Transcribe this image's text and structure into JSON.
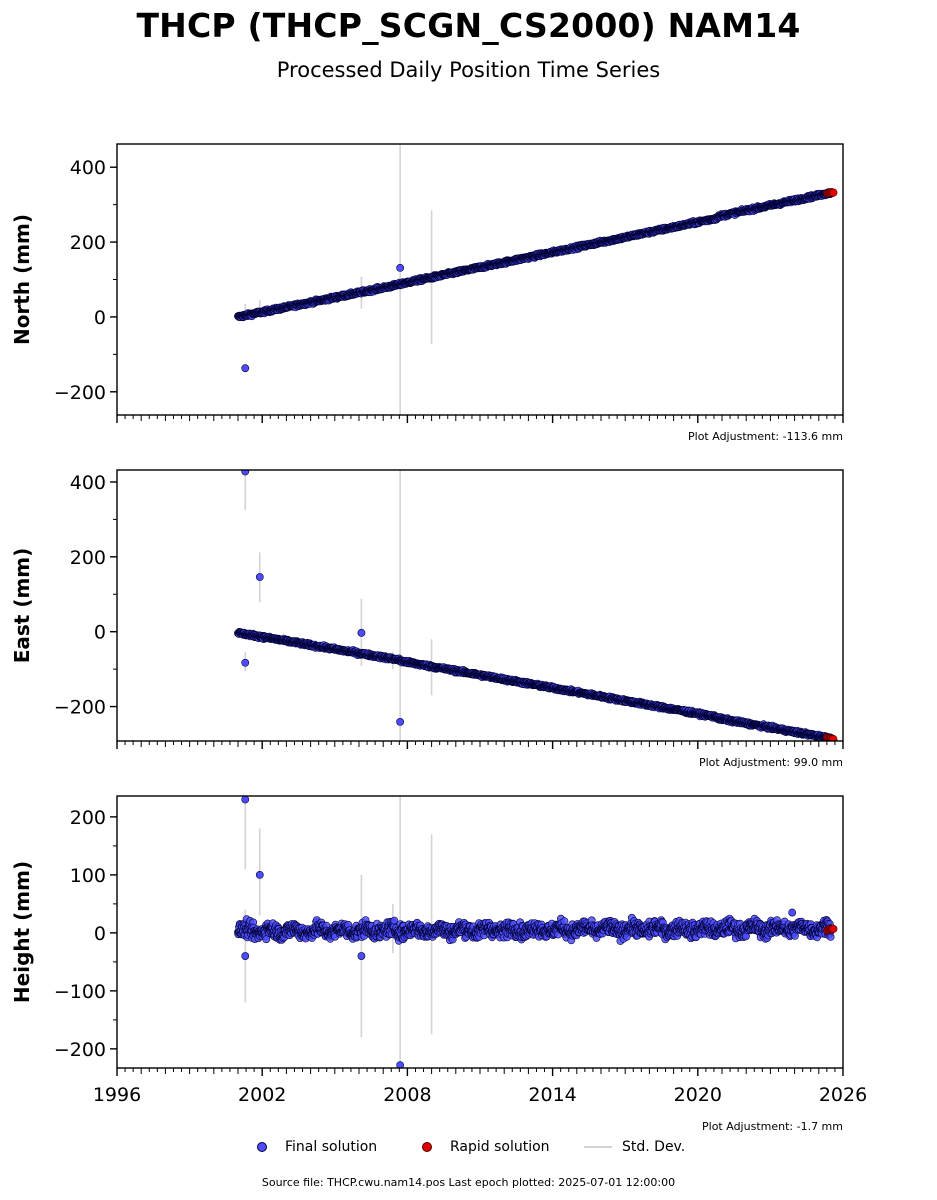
{
  "title": "THCP (THCP_SCGN_CS2000) NAM14",
  "subtitle": "Processed Daily Position Time Series",
  "legend": {
    "final_label": "Final solution",
    "rapid_label": "Rapid solution",
    "std_label": "Std. Dev."
  },
  "source_text": "Source file: THCP.cwu.nam14.pos  Last epoch plotted: 2025-07-01 12:00:00",
  "colors": {
    "final_fill": "#4d4dff",
    "final_edge": "#000033",
    "rapid_fill": "#e00000",
    "std_dev": "#d3d3d3"
  },
  "chart_data": [
    {
      "type": "scatter",
      "ylabel": "North (mm)",
      "xlim": [
        1996,
        2026
      ],
      "ylim": [
        -262,
        462
      ],
      "yticks": [
        -200,
        0,
        200,
        400
      ],
      "yticklabels": [
        "−200",
        "0",
        "200",
        "400"
      ],
      "adjustment": "Plot Adjustment: -113.6 mm",
      "segments": [
        {
          "x": [
            2001.0,
            2007.7
          ],
          "y": [
            0,
            87
          ]
        },
        {
          "x": [
            2007.7,
            2020.8
          ],
          "y": [
            88,
            264
          ]
        },
        {
          "x": [
            2020.8,
            2025.5
          ],
          "y": [
            268,
            332
          ]
        }
      ],
      "noise": 3,
      "outliers": [
        {
          "x": 2001.3,
          "y": -137
        },
        {
          "x": 2007.7,
          "y": 131
        }
      ],
      "error_bars": [
        {
          "x": 2001.3,
          "lo": -5,
          "hi": 35
        },
        {
          "x": 2001.9,
          "lo": 5,
          "hi": 45
        },
        {
          "x": 2006.1,
          "lo": 22,
          "hi": 107
        },
        {
          "x": 2007.4,
          "lo": 70,
          "hi": 98
        },
        {
          "x": 2007.7,
          "lo": -262,
          "hi": 462
        },
        {
          "x": 2009.0,
          "lo": -72,
          "hi": 285
        }
      ],
      "rapid": {
        "x": [
          2025.35,
          2025.6
        ],
        "y": [
          331,
          333
        ]
      }
    },
    {
      "type": "scatter",
      "ylabel": "East (mm)",
      "xlim": [
        1996,
        2026
      ],
      "ylim": [
        -292,
        432
      ],
      "yticks": [
        -200,
        0,
        200,
        400
      ],
      "yticklabels": [
        "−200",
        "0",
        "200",
        "400"
      ],
      "adjustment": "Plot Adjustment: 99.0 mm",
      "segments": [
        {
          "x": [
            2001.0,
            2007.7
          ],
          "y": [
            -3,
            -76
          ]
        },
        {
          "x": [
            2007.7,
            2020.8
          ],
          "y": [
            -78,
            -228
          ]
        },
        {
          "x": [
            2020.8,
            2025.5
          ],
          "y": [
            -231,
            -285
          ]
        }
      ],
      "noise": 3,
      "outliers": [
        {
          "x": 2001.3,
          "y": 428
        },
        {
          "x": 2001.3,
          "y": -83
        },
        {
          "x": 2001.9,
          "y": 146
        },
        {
          "x": 2006.1,
          "y": -3
        },
        {
          "x": 2007.7,
          "y": -241
        }
      ],
      "error_bars": [
        {
          "x": 2001.3,
          "lo": 325,
          "hi": 432
        },
        {
          "x": 2001.3,
          "lo": -105,
          "hi": -55
        },
        {
          "x": 2001.9,
          "lo": 78,
          "hi": 212
        },
        {
          "x": 2006.1,
          "lo": -92,
          "hi": 88
        },
        {
          "x": 2007.4,
          "lo": -100,
          "hi": -55
        },
        {
          "x": 2007.7,
          "lo": -292,
          "hi": 432
        },
        {
          "x": 2009.0,
          "lo": -170,
          "hi": -20
        }
      ],
      "rapid": {
        "x": [
          2025.35,
          2025.6
        ],
        "y": [
          -284,
          -286
        ]
      }
    },
    {
      "type": "scatter",
      "ylabel": "Height (mm)",
      "xlim": [
        1996,
        2026
      ],
      "ylim": [
        -233,
        236
      ],
      "yticks": [
        -200,
        -100,
        0,
        100,
        200
      ],
      "yticklabels": [
        "−200",
        "−100",
        "0",
        "100",
        "200"
      ],
      "xticks": [
        1996,
        2002,
        2008,
        2014,
        2020,
        2026
      ],
      "xticklabels": [
        "1996",
        "2002",
        "2008",
        "2014",
        "2020",
        "2026"
      ],
      "adjustment": "Plot Adjustment: -1.7 mm",
      "segments": [
        {
          "x": [
            2001.0,
            2025.5
          ],
          "y": [
            3,
            8
          ]
        }
      ],
      "noise": 9,
      "outliers": [
        {
          "x": 2001.3,
          "y": 230
        },
        {
          "x": 2001.3,
          "y": -40
        },
        {
          "x": 2001.9,
          "y": 100
        },
        {
          "x": 2006.1,
          "y": -40
        },
        {
          "x": 2007.7,
          "y": -228
        },
        {
          "x": 2023.9,
          "y": 35
        }
      ],
      "error_bars": [
        {
          "x": 2001.3,
          "lo": 110,
          "hi": 236
        },
        {
          "x": 2001.3,
          "lo": -120,
          "hi": 40
        },
        {
          "x": 2001.9,
          "lo": 30,
          "hi": 180
        },
        {
          "x": 2006.1,
          "lo": -180,
          "hi": 100
        },
        {
          "x": 2007.4,
          "lo": -35,
          "hi": 50
        },
        {
          "x": 2007.7,
          "lo": -233,
          "hi": 236
        },
        {
          "x": 2009.0,
          "lo": -175,
          "hi": 170
        }
      ],
      "rapid": {
        "x": [
          2025.35,
          2025.6
        ],
        "y": [
          4,
          8
        ]
      }
    }
  ]
}
